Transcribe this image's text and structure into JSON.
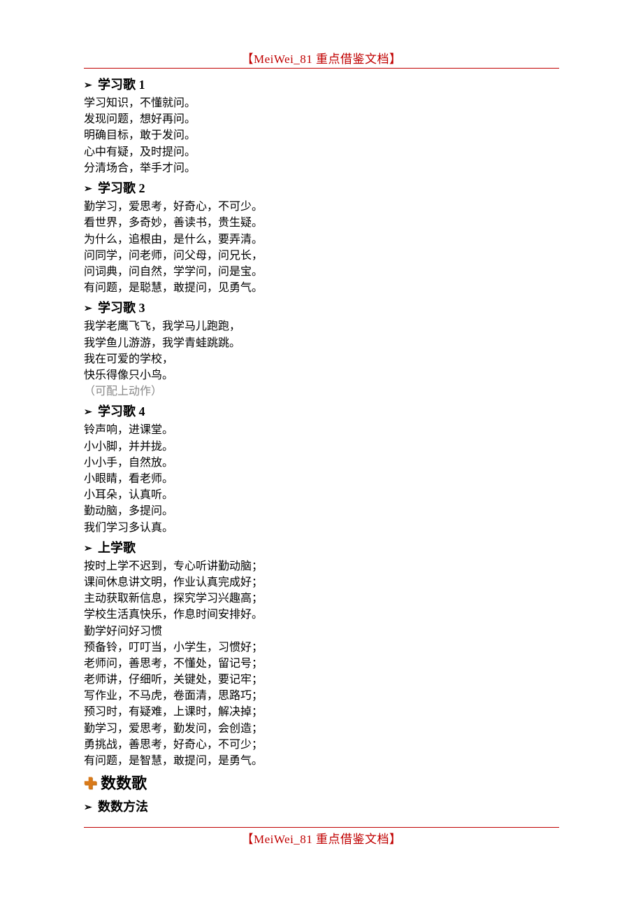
{
  "colors": {
    "header_rule": "#c00000",
    "header_text": "#c00000",
    "body_text": "#000000",
    "note_text": "#888888",
    "plus_icon": "#d97a1a",
    "background": "#ffffff"
  },
  "typography": {
    "body_family": "SimSun",
    "h1_family": "SimHei",
    "body_size_pt": 12,
    "h2_size_pt": 14,
    "h1_size_pt": 16
  },
  "header": {
    "title": "【MeiWei_81 重点借鉴文档】"
  },
  "footer": {
    "title": "【MeiWei_81 重点借鉴文档】"
  },
  "sections": [
    {
      "type": "h2",
      "title": "学习歌 1",
      "lines": [
        "学习知识，不懂就问。",
        "发现问题，想好再问。",
        "明确目标，敢于发问。",
        "心中有疑，及时提问。",
        "分清场合，举手才问。"
      ]
    },
    {
      "type": "h2",
      "title": "学习歌 2",
      "lines": [
        "勤学习，爱思考，好奇心，不可少。",
        "看世界，多奇妙，善读书，贵生疑。",
        "为什么，追根由，是什么，要弄清。",
        "问同学，问老师，问父母，问兄长，",
        "问词典，问自然，学学问，问是宝。",
        "有问题，是聪慧，敢提问，见勇气。"
      ]
    },
    {
      "type": "h2",
      "title": "学习歌 3",
      "lines": [
        "我学老鹰飞飞，我学马儿跑跑，",
        "我学鱼儿游游，我学青蛙跳跳。",
        "我在可爱的学校，",
        "快乐得像只小鸟。"
      ],
      "note": "（可配上动作）"
    },
    {
      "type": "h2",
      "title": "学习歌 4",
      "lines": [
        "铃声响，进课堂。",
        "小小脚，并并拢。",
        "小小手，自然放。",
        "小眼睛，看老师。",
        "小耳朵，认真听。",
        "勤动脑，多提问。",
        "我们学习多认真。"
      ]
    },
    {
      "type": "h2",
      "title": "上学歌",
      "lines": [
        "按时上学不迟到，专心听讲勤动脑；",
        "课间休息讲文明，作业认真完成好；",
        "主动获取新信息，探究学习兴趣高；",
        "学校生活真快乐，作息时间安排好。",
        "勤学好问好习惯",
        "预备铃，叮叮当，小学生，习惯好；",
        "老师问，善思考，不懂处，留记号；",
        "老师讲，仔细听，关键处，要记牢；",
        "写作业，不马虎，卷面清，思路巧；",
        "预习时，有疑难，上课时，解决掉；",
        "勤学习，爱思考，勤发问，会创造；",
        "勇挑战，善思考，好奇心，不可少；",
        "有问题，是智慧，敢提问，是勇气。"
      ]
    },
    {
      "type": "h1",
      "title": "数数歌"
    },
    {
      "type": "h2",
      "title": "数数方法"
    }
  ]
}
